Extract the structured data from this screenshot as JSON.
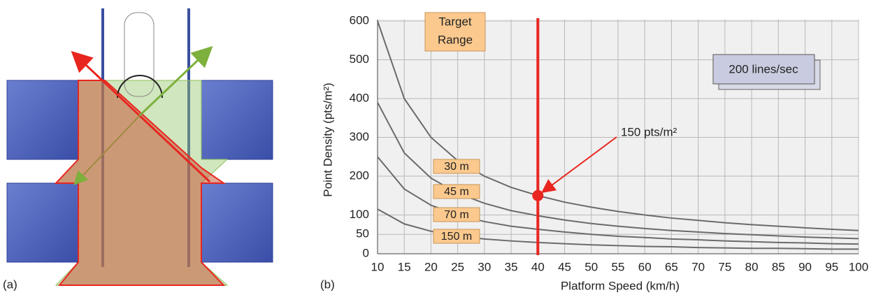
{
  "panel_a": {
    "label": "(a)"
  },
  "chart_data": {
    "type": "line",
    "panel_label": "(b)",
    "xlabel": "Platform Speed (km/h)",
    "ylabel": "Point Density (pts/m²)",
    "x": [
      10,
      15,
      20,
      25,
      30,
      35,
      40,
      45,
      50,
      55,
      60,
      65,
      70,
      75,
      80,
      85,
      90,
      95,
      100
    ],
    "series": [
      {
        "name": "30 m",
        "color": "#6b6b6b",
        "values": [
          600,
          400,
          300,
          240,
          200,
          171,
          150,
          133,
          120,
          109,
          100,
          92,
          86,
          80,
          75,
          71,
          67,
          63,
          60
        ]
      },
      {
        "name": "45 m",
        "color": "#6b6b6b",
        "values": [
          390,
          260,
          195,
          156,
          130,
          111,
          98,
          87,
          78,
          71,
          65,
          60,
          56,
          52,
          49,
          46,
          43,
          41,
          39
        ]
      },
      {
        "name": "70 m",
        "color": "#6b6b6b",
        "values": [
          250,
          167,
          125,
          100,
          83,
          71,
          63,
          56,
          50,
          45,
          42,
          38,
          36,
          33,
          31,
          29,
          28,
          26,
          25
        ]
      },
      {
        "name": "150 m",
        "color": "#6b6b6b",
        "values": [
          115,
          77,
          58,
          46,
          38,
          33,
          29,
          26,
          23,
          21,
          19,
          18,
          16,
          15,
          14,
          14,
          13,
          12,
          12
        ]
      }
    ],
    "xlim": [
      10,
      100
    ],
    "ylim": [
      0,
      600
    ],
    "xticks": [
      10,
      15,
      20,
      25,
      30,
      35,
      40,
      45,
      50,
      55,
      60,
      65,
      70,
      75,
      80,
      85,
      90,
      95,
      100
    ],
    "yticks": [
      0,
      50,
      100,
      200,
      300,
      400,
      500,
      600
    ],
    "grid": true,
    "target_range": [
      "Target",
      "Range"
    ],
    "rate_label": "200 lines/sec",
    "target_x": 40,
    "marker": {
      "x": 40,
      "y": 150,
      "label": "150 pts/m²",
      "color": "#e8261f"
    }
  }
}
